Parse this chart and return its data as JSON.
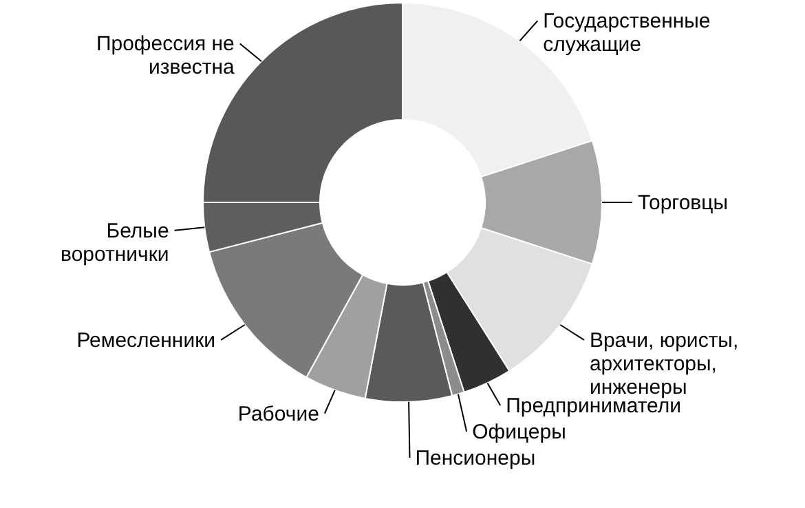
{
  "chart_data": {
    "type": "donut",
    "categories": [
      "Государственные служащие",
      "Торговцы",
      "Врачи, юристы, архитекторы, инженеры",
      "Предприниматели",
      "Офицеры",
      "Пенсионеры",
      "Рабочие",
      "Ремесленники",
      "Белые воротнички",
      "Профессия не известна"
    ],
    "values": [
      20,
      10,
      11,
      4,
      1,
      7,
      5,
      13,
      4,
      25
    ],
    "colors": [
      "#f0f0f0",
      "#a8a8a8",
      "#e0e0e0",
      "#303030",
      "#8c8c8c",
      "#5a5a5a",
      "#a0a0a0",
      "#7a7a7a",
      "#5e5e5e",
      "#585858"
    ]
  }
}
